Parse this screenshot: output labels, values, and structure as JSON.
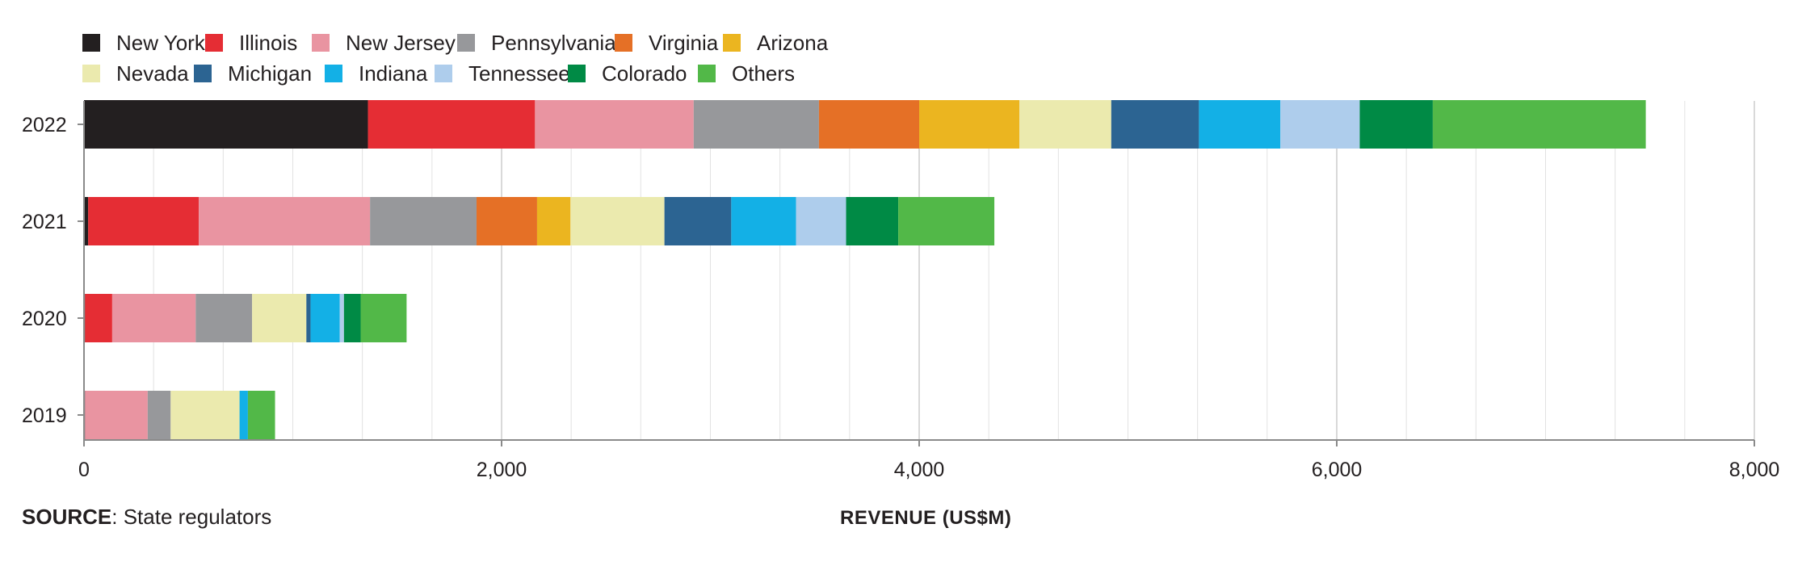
{
  "chart_data": {
    "type": "bar",
    "orientation": "horizontal",
    "stacked": true,
    "categories": [
      "2022",
      "2021",
      "2020",
      "2019"
    ],
    "series": [
      {
        "name": "New York",
        "color": "#231f20",
        "values": [
          1360,
          20,
          5,
          5
        ]
      },
      {
        "name": "Illinois",
        "color": "#e52d34",
        "values": [
          800,
          530,
          130,
          0
        ]
      },
      {
        "name": "New Jersey",
        "color": "#e994a1",
        "values": [
          760,
          820,
          400,
          300
        ]
      },
      {
        "name": "Pennsylvania",
        "color": "#97989b",
        "values": [
          600,
          510,
          270,
          110
        ]
      },
      {
        "name": "Virginia",
        "color": "#e57026",
        "values": [
          480,
          290,
          0,
          0
        ]
      },
      {
        "name": "Arizona",
        "color": "#ebb520",
        "values": [
          480,
          160,
          0,
          0
        ]
      },
      {
        "name": "Nevada",
        "color": "#ebeaae",
        "values": [
          440,
          450,
          260,
          330
        ]
      },
      {
        "name": "Michigan",
        "color": "#2c6492",
        "values": [
          420,
          320,
          20,
          0
        ]
      },
      {
        "name": "Indiana",
        "color": "#13b0e6",
        "values": [
          390,
          310,
          140,
          40
        ]
      },
      {
        "name": "Tennessee",
        "color": "#aecdec",
        "values": [
          380,
          240,
          20,
          0
        ]
      },
      {
        "name": "Colorado",
        "color": "#008a45",
        "values": [
          350,
          250,
          80,
          0
        ]
      },
      {
        "name": "Others",
        "color": "#52b848",
        "values": [
          1020,
          460,
          220,
          130
        ]
      }
    ],
    "xlim": [
      0,
      8000
    ],
    "xticks": [
      0,
      2000,
      4000,
      6000,
      8000
    ],
    "xtick_labels": [
      "0",
      "2,000",
      "4,000",
      "6,000",
      "8,000"
    ],
    "xlabel": "REVENUE (US$M)",
    "ylabel": "",
    "grid": "vertical",
    "legend_position": "top-left"
  },
  "source": {
    "label": "SOURCE",
    "text": ": State regulators"
  }
}
